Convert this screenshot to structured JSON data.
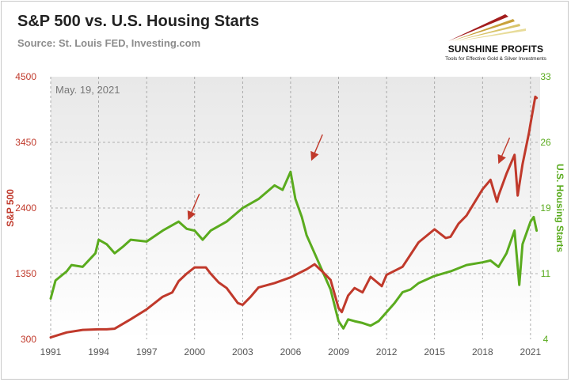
{
  "header": {
    "title": "S&P 500 vs. U.S. Housing Starts",
    "subtitle": "Source: St. Louis FED, Investing.com"
  },
  "logo": {
    "name": "SUNSHINE PROFITS",
    "tagline": "Tools for Effective Gold & Silver Investments"
  },
  "colors": {
    "sp500": "#c0392b",
    "housing": "#5aab1e",
    "plot_bg": "#efefef"
  },
  "chart_data": {
    "type": "line",
    "annotation": "May. 19, 2021",
    "grid": true,
    "x_range": [
      1991,
      2021.6
    ],
    "x_ticks": [
      "1991",
      "1994",
      "1997",
      "2000",
      "2003",
      "2006",
      "2009",
      "2012",
      "2015",
      "2018",
      "2021"
    ],
    "y_left": {
      "label": "S&P 500",
      "range": [
        300,
        4500
      ],
      "ticks": [
        "300",
        "1350",
        "2400",
        "3450",
        "4500"
      ]
    },
    "y_right": {
      "label": "U.S. Housing Starts",
      "range": [
        4,
        33
      ],
      "ticks": [
        "4",
        "11",
        "19",
        "26",
        "33"
      ]
    },
    "series": [
      {
        "name": "S&P 500",
        "axis": "left",
        "color": "#c0392b",
        "points": [
          [
            1991.0,
            330
          ],
          [
            1992.0,
            410
          ],
          [
            1993.0,
            450
          ],
          [
            1994.0,
            460
          ],
          [
            1994.5,
            460
          ],
          [
            1995.0,
            470
          ],
          [
            1996.0,
            620
          ],
          [
            1997.0,
            780
          ],
          [
            1998.0,
            980
          ],
          [
            1998.6,
            1050
          ],
          [
            1999.0,
            1230
          ],
          [
            1999.5,
            1350
          ],
          [
            2000.0,
            1450
          ],
          [
            2000.7,
            1450
          ],
          [
            2001.0,
            1350
          ],
          [
            2001.5,
            1210
          ],
          [
            2002.0,
            1120
          ],
          [
            2002.7,
            880
          ],
          [
            2003.0,
            850
          ],
          [
            2003.5,
            980
          ],
          [
            2004.0,
            1130
          ],
          [
            2005.0,
            1200
          ],
          [
            2006.0,
            1290
          ],
          [
            2007.0,
            1420
          ],
          [
            2007.5,
            1500
          ],
          [
            2008.0,
            1380
          ],
          [
            2008.5,
            1250
          ],
          [
            2009.0,
            800
          ],
          [
            2009.2,
            735
          ],
          [
            2009.6,
            1000
          ],
          [
            2010.0,
            1120
          ],
          [
            2010.5,
            1050
          ],
          [
            2011.0,
            1300
          ],
          [
            2011.7,
            1150
          ],
          [
            2012.0,
            1330
          ],
          [
            2013.0,
            1460
          ],
          [
            2014.0,
            1850
          ],
          [
            2015.0,
            2060
          ],
          [
            2015.7,
            1920
          ],
          [
            2016.0,
            1940
          ],
          [
            2016.5,
            2150
          ],
          [
            2017.0,
            2280
          ],
          [
            2018.0,
            2700
          ],
          [
            2018.5,
            2850
          ],
          [
            2018.9,
            2500
          ],
          [
            2019.0,
            2600
          ],
          [
            2019.5,
            2950
          ],
          [
            2020.0,
            3250
          ],
          [
            2020.2,
            2600
          ],
          [
            2020.5,
            3100
          ],
          [
            2020.9,
            3600
          ],
          [
            2021.0,
            3750
          ],
          [
            2021.3,
            4180
          ],
          [
            2021.38,
            4160
          ]
        ]
      },
      {
        "name": "U.S. Housing Starts",
        "axis": "right",
        "color": "#5aab1e",
        "points": [
          [
            1991.0,
            8.5
          ],
          [
            1991.3,
            10.5
          ],
          [
            1992.0,
            11.5
          ],
          [
            1992.3,
            12.2
          ],
          [
            1993.0,
            12.0
          ],
          [
            1993.8,
            13.5
          ],
          [
            1994.0,
            15.0
          ],
          [
            1994.5,
            14.5
          ],
          [
            1995.0,
            13.5
          ],
          [
            1995.5,
            14.2
          ],
          [
            1996.0,
            15.0
          ],
          [
            1997.0,
            14.8
          ],
          [
            1998.0,
            16.0
          ],
          [
            1999.0,
            17.0
          ],
          [
            1999.5,
            16.2
          ],
          [
            2000.0,
            16.0
          ],
          [
            2000.5,
            15.0
          ],
          [
            2001.0,
            16.0
          ],
          [
            2002.0,
            17.0
          ],
          [
            2003.0,
            18.5
          ],
          [
            2004.0,
            19.5
          ],
          [
            2005.0,
            21.0
          ],
          [
            2005.5,
            20.5
          ],
          [
            2006.0,
            22.5
          ],
          [
            2006.3,
            19.5
          ],
          [
            2006.7,
            17.5
          ],
          [
            2007.0,
            15.5
          ],
          [
            2007.5,
            13.5
          ],
          [
            2008.0,
            11.5
          ],
          [
            2008.5,
            9.5
          ],
          [
            2009.0,
            6.0
          ],
          [
            2009.3,
            5.2
          ],
          [
            2009.6,
            6.2
          ],
          [
            2010.0,
            6.0
          ],
          [
            2010.5,
            5.8
          ],
          [
            2011.0,
            5.5
          ],
          [
            2011.5,
            6.0
          ],
          [
            2012.0,
            7.0
          ],
          [
            2012.5,
            8.0
          ],
          [
            2013.0,
            9.2
          ],
          [
            2013.5,
            9.5
          ],
          [
            2014.0,
            10.2
          ],
          [
            2015.0,
            11.0
          ],
          [
            2016.0,
            11.5
          ],
          [
            2017.0,
            12.2
          ],
          [
            2018.0,
            12.5
          ],
          [
            2018.5,
            12.7
          ],
          [
            2019.0,
            12.0
          ],
          [
            2019.5,
            13.5
          ],
          [
            2020.0,
            16.0
          ],
          [
            2020.3,
            10.0
          ],
          [
            2020.5,
            14.5
          ],
          [
            2021.0,
            17.0
          ],
          [
            2021.2,
            17.5
          ],
          [
            2021.38,
            16.0
          ]
        ]
      }
    ],
    "arrows": [
      [
        1999.7,
        2270
      ],
      [
        2007.4,
        3220
      ],
      [
        2019.1,
        3170
      ]
    ]
  }
}
